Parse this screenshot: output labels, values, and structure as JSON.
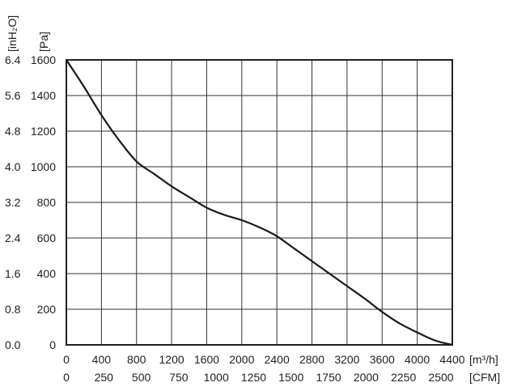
{
  "chart_data": {
    "type": "line",
    "title": "",
    "y_units": [
      "[inH₂O]",
      "[Pa]"
    ],
    "x_units": [
      "[m³/h]",
      "[CFM]"
    ],
    "xlim": [
      0,
      4400
    ],
    "ylim": [
      0,
      1600
    ],
    "x_ticks_m3h": [
      "0",
      "400",
      "800",
      "1200",
      "1600",
      "2000",
      "2400",
      "2800",
      "3200",
      "3600",
      "4000",
      "4400"
    ],
    "x_ticks_cfm": [
      "0",
      "250",
      "500",
      "750",
      "1000",
      "1250",
      "1500",
      "1750",
      "2000",
      "2250",
      "2500"
    ],
    "y_ticks_pa": [
      "0",
      "200",
      "400",
      "600",
      "800",
      "1000",
      "1200",
      "1400",
      "1600"
    ],
    "y_ticks_inh2o": [
      "0.0",
      "0.8",
      "1.6",
      "2.4",
      "3.2",
      "4.0",
      "4.8",
      "5.6",
      "6.4"
    ],
    "grid": true,
    "series": [
      {
        "x": [
          0,
          200,
          400,
          600,
          800,
          1000,
          1200,
          1400,
          1600,
          1800,
          2000,
          2200,
          2400,
          2600,
          2800,
          3000,
          3200,
          3400,
          3600,
          3800,
          4000,
          4200,
          4400
        ],
        "y": [
          1600,
          1450,
          1290,
          1150,
          1030,
          960,
          890,
          830,
          770,
          730,
          700,
          660,
          610,
          540,
          470,
          400,
          330,
          260,
          185,
          120,
          70,
          25,
          0
        ]
      }
    ]
  }
}
